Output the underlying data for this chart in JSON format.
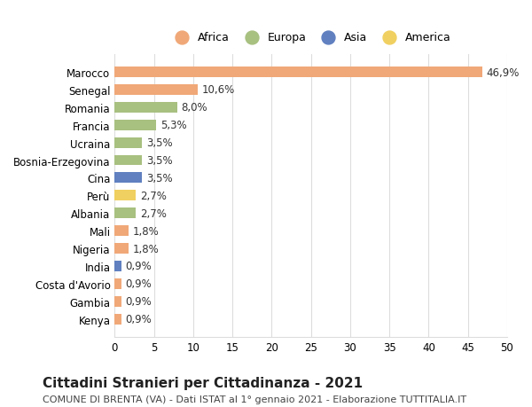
{
  "categories": [
    "Marocco",
    "Senegal",
    "Romania",
    "Francia",
    "Ucraina",
    "Bosnia-Erzegovina",
    "Cina",
    "Perù",
    "Albania",
    "Mali",
    "Nigeria",
    "India",
    "Costa d'Avorio",
    "Gambia",
    "Kenya"
  ],
  "values": [
    46.9,
    10.6,
    8.0,
    5.3,
    3.5,
    3.5,
    3.5,
    2.7,
    2.7,
    1.8,
    1.8,
    0.9,
    0.9,
    0.9,
    0.9
  ],
  "labels": [
    "46,9%",
    "10,6%",
    "8,0%",
    "5,3%",
    "3,5%",
    "3,5%",
    "3,5%",
    "2,7%",
    "2,7%",
    "1,8%",
    "1,8%",
    "0,9%",
    "0,9%",
    "0,9%",
    "0,9%"
  ],
  "continents": [
    "Africa",
    "Africa",
    "Europa",
    "Europa",
    "Europa",
    "Europa",
    "Asia",
    "America",
    "Europa",
    "Africa",
    "Africa",
    "Asia",
    "Africa",
    "Africa",
    "Africa"
  ],
  "continent_colors": {
    "Africa": "#F0A878",
    "Europa": "#A8C080",
    "Asia": "#6080C0",
    "America": "#F0D060"
  },
  "legend_order": [
    "Africa",
    "Europa",
    "Asia",
    "America"
  ],
  "title": "Cittadini Stranieri per Cittadinanza - 2021",
  "subtitle": "COMUNE DI BRENTA (VA) - Dati ISTAT al 1° gennaio 2021 - Elaborazione TUTTITALIA.IT",
  "xlim": [
    0,
    50
  ],
  "xticks": [
    0,
    5,
    10,
    15,
    20,
    25,
    30,
    35,
    40,
    45,
    50
  ],
  "background_color": "#ffffff",
  "grid_color": "#dddddd",
  "bar_height": 0.6,
  "label_fontsize": 8.5,
  "title_fontsize": 11,
  "subtitle_fontsize": 8,
  "tick_fontsize": 8.5
}
